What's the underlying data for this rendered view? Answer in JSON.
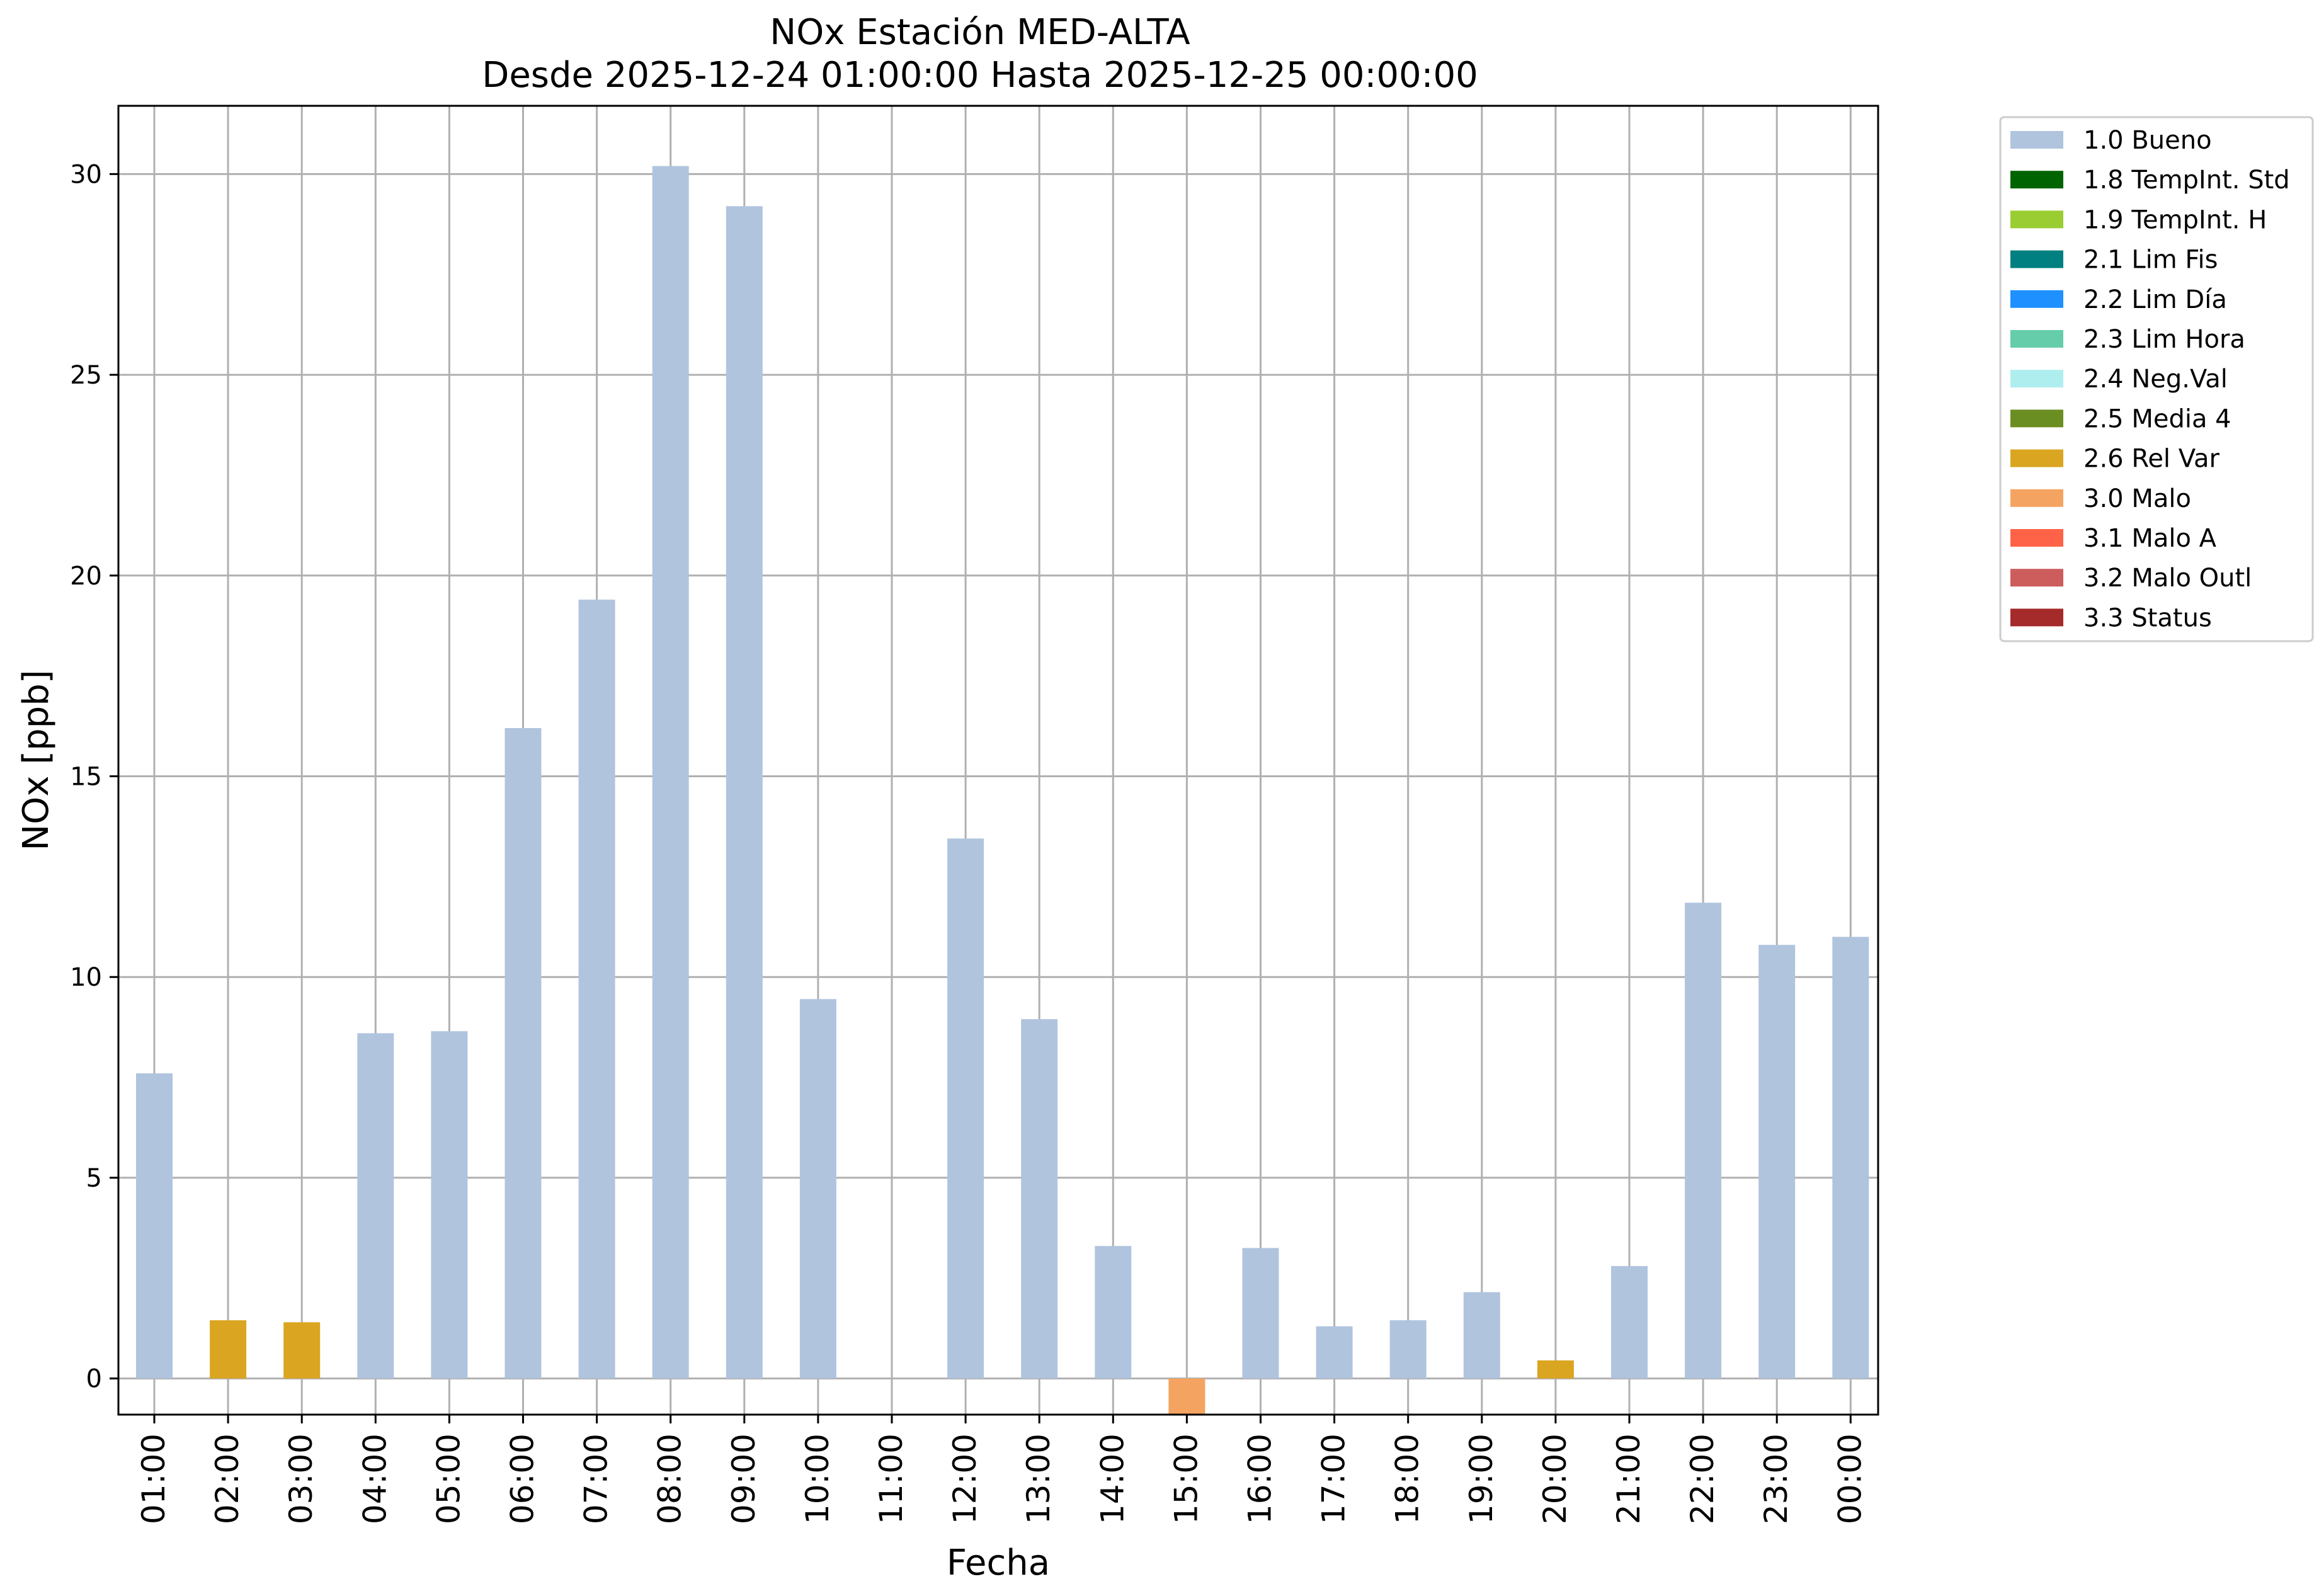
{
  "chart_data": {
    "type": "bar",
    "title_line1": "NOx Estación MED-ALTA",
    "title_line2": "Desde 2025-12-24 01:00:00 Hasta 2025-12-25 00:00:00",
    "xlabel": "Fecha",
    "ylabel": "NOx [ppb]",
    "ylim": [
      -0.9,
      31.7
    ],
    "yticks": [
      0,
      5,
      10,
      15,
      20,
      25,
      30
    ],
    "grid": true,
    "legend_position": "outside-top-right",
    "categories": [
      "01:00",
      "02:00",
      "03:00",
      "04:00",
      "05:00",
      "06:00",
      "07:00",
      "08:00",
      "09:00",
      "10:00",
      "11:00",
      "12:00",
      "13:00",
      "14:00",
      "15:00",
      "16:00",
      "17:00",
      "18:00",
      "19:00",
      "20:00",
      "21:00",
      "22:00",
      "23:00",
      "00:00"
    ],
    "values": [
      7.6,
      1.45,
      1.4,
      8.6,
      8.65,
      16.2,
      19.4,
      30.2,
      29.2,
      9.45,
      null,
      13.45,
      8.95,
      3.3,
      -0.9,
      3.25,
      1.3,
      1.45,
      2.15,
      0.45,
      2.8,
      11.85,
      10.8,
      11.0
    ],
    "flags": [
      "1.0 Bueno",
      "2.6 Rel Var",
      "2.6 Rel Var",
      "1.0 Bueno",
      "1.0 Bueno",
      "1.0 Bueno",
      "1.0 Bueno",
      "1.0 Bueno",
      "1.0 Bueno",
      "1.0 Bueno",
      null,
      "1.0 Bueno",
      "1.0 Bueno",
      "1.0 Bueno",
      "3.0 Malo",
      "1.0 Bueno",
      "1.0 Bueno",
      "1.0 Bueno",
      "1.0 Bueno",
      "2.6 Rel Var",
      "1.0 Bueno",
      "1.0 Bueno",
      "1.0 Bueno",
      "1.0 Bueno"
    ],
    "legend": [
      {
        "label": "1.0 Bueno",
        "color": "#b0c4de"
      },
      {
        "label": "1.8 TempInt. Std",
        "color": "#006400"
      },
      {
        "label": "1.9 TempInt. H",
        "color": "#9acd32"
      },
      {
        "label": "2.1 Lim Fis",
        "color": "#008080"
      },
      {
        "label": "2.2 Lim Día",
        "color": "#1e90ff"
      },
      {
        "label": "2.3 Lim Hora",
        "color": "#66cdaa"
      },
      {
        "label": "2.4 Neg.Val",
        "color": "#afeeee"
      },
      {
        "label": "2.5 Media 4",
        "color": "#6b8e23"
      },
      {
        "label": "2.6 Rel Var",
        "color": "#daa520"
      },
      {
        "label": "3.0 Malo",
        "color": "#f4a460"
      },
      {
        "label": "3.1 Malo A",
        "color": "#ff6347"
      },
      {
        "label": "3.2 Malo Outl",
        "color": "#cd5c5c"
      },
      {
        "label": "3.3 Status",
        "color": "#a52a2a"
      }
    ]
  }
}
